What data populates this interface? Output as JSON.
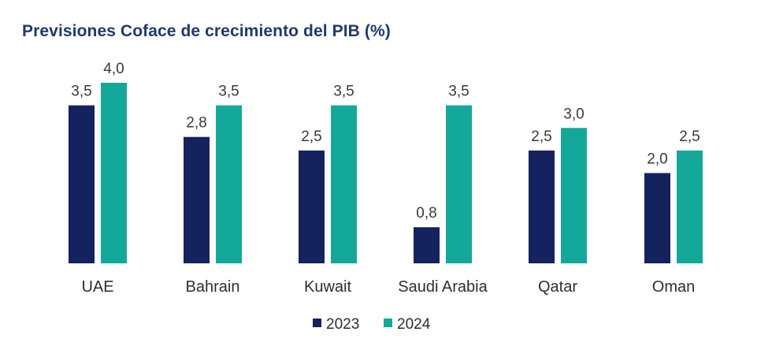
{
  "chart_data": {
    "type": "bar",
    "title": "Previsiones Coface de crecimiento del PIB (%)",
    "categories": [
      "UAE",
      "Bahrain",
      "Kuwait",
      "Saudi Arabia",
      "Qatar",
      "Oman"
    ],
    "series": [
      {
        "name": "2023",
        "color": "#14225e",
        "values": [
          3.5,
          2.8,
          2.5,
          0.8,
          2.5,
          2.0
        ],
        "labels": [
          "3,5",
          "2,8",
          "2,5",
          "0,8",
          "2,5",
          "2,0"
        ]
      },
      {
        "name": "2024",
        "color": "#13a89a",
        "values": [
          4.0,
          3.5,
          3.5,
          3.5,
          3.0,
          2.5
        ],
        "labels": [
          "4,0",
          "3,5",
          "3,5",
          "3,5",
          "3,0",
          "2,5"
        ]
      }
    ],
    "ylim": [
      0,
      4.0
    ],
    "xlabel": "",
    "ylabel": "",
    "grid": false,
    "legend": "bottom-center"
  }
}
